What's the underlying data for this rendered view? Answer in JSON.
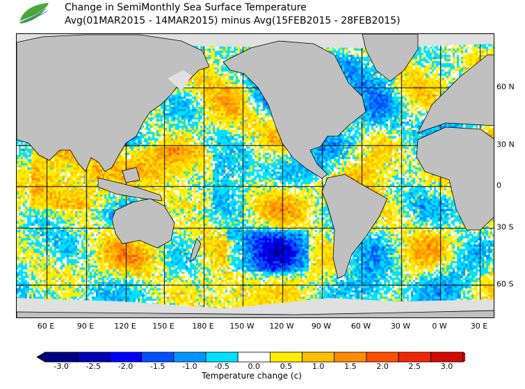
{
  "header": {
    "title": "Change in SemiMonthly Sea Surface Temperature",
    "subtitle": "Avg(01MAR2015 - 14MAR2015) minus Avg(15FEB2015 - 28FEB2015)",
    "logo_icon": "leaf-wave-logo-icon"
  },
  "map": {
    "lon_labels": [
      "60 E",
      "90 E",
      "120 E",
      "150 E",
      "180 E",
      "150 W",
      "120 W",
      "90 W",
      "60 W",
      "30 W",
      "0 W",
      "30 E"
    ],
    "lat_labels": [
      "60 N",
      "30 N",
      "0",
      "30 S",
      "60 S"
    ],
    "land_color": "#c0c0c0",
    "ice_color": "#e0e0e0"
  },
  "colorbar": {
    "labels": [
      "-3.0",
      "-2.5",
      "-2.0",
      "-1.5",
      "-1.0",
      "-0.5",
      "0.0",
      "0.5",
      "1.0",
      "1.5",
      "2.0",
      "2.5",
      "3.0"
    ],
    "colors": [
      "#000080",
      "#0000b4",
      "#0000ff",
      "#0050ff",
      "#0096ff",
      "#00e0ff",
      "#ffffff",
      "#ffee00",
      "#ffbe00",
      "#ff8c00",
      "#ff5000",
      "#f02800",
      "#d20a00"
    ],
    "title": "Temperature change  (c)"
  }
}
